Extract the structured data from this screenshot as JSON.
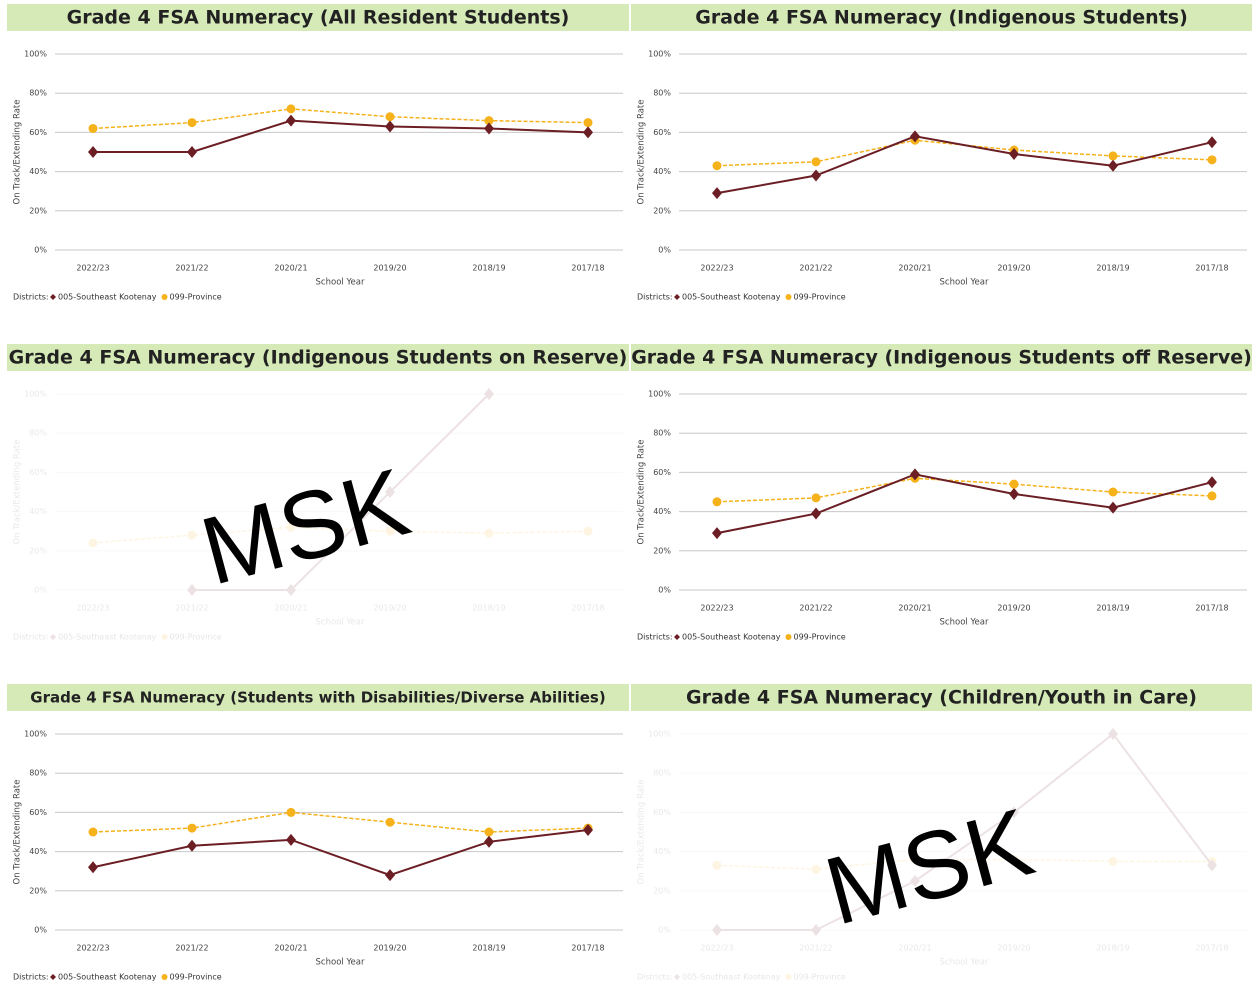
{
  "chart_data": [
    {
      "type": "line",
      "title": "Grade 4 FSA Numeracy (All Resident Students)",
      "y_label": "On Track/Extending Rate",
      "x_label": "School Year",
      "legend_title": "Districts:",
      "categories": [
        "2022/23",
        "2021/22",
        "2020/21",
        "2019/20",
        "2018/19",
        "2017/18"
      ],
      "series": [
        {
          "name": "005-Southeast Kootenay",
          "color": "#6b1e24",
          "values": [
            50,
            50,
            66,
            63,
            62,
            60
          ]
        },
        {
          "name": "099-Province",
          "color": "#f5b21b",
          "values": [
            62,
            65,
            72,
            68,
            66,
            65
          ]
        }
      ],
      "ylim": [
        0,
        100
      ],
      "yticks": [
        {
          "value": 0,
          "label": "0%"
        },
        {
          "value": 20,
          "label": "20%"
        },
        {
          "value": 40,
          "label": "40%"
        },
        {
          "value": 60,
          "label": "60%"
        },
        {
          "value": 80,
          "label": "80%"
        },
        {
          "value": 100,
          "label": "100%"
        }
      ],
      "grid": true
    },
    {
      "type": "line",
      "title": "Grade 4 FSA Numeracy (Indigenous Students)",
      "y_label": "On Track/Extending Rate",
      "x_label": "School Year",
      "legend_title": "Districts:",
      "categories": [
        "2022/23",
        "2021/22",
        "2020/21",
        "2019/20",
        "2018/19",
        "2017/18"
      ],
      "series": [
        {
          "name": "005-Southeast Kootenay",
          "color": "#6b1e24",
          "values": [
            29,
            38,
            58,
            49,
            43,
            55
          ]
        },
        {
          "name": "099-Province",
          "color": "#f5b21b",
          "values": [
            43,
            45,
            56,
            51,
            48,
            46
          ]
        }
      ],
      "ylim": [
        0,
        100
      ],
      "yticks": [
        {
          "value": 0,
          "label": "0%"
        },
        {
          "value": 20,
          "label": "20%"
        },
        {
          "value": 40,
          "label": "40%"
        },
        {
          "value": 60,
          "label": "60%"
        },
        {
          "value": 80,
          "label": "80%"
        },
        {
          "value": 100,
          "label": "100%"
        }
      ],
      "grid": true
    },
    {
      "type": "line",
      "title": "Grade 4 FSA Numeracy (Indigenous Students on Reserve)",
      "y_label": "On Track/Extending Rate",
      "x_label": "School Year",
      "legend_title": "Districts:",
      "masked": true,
      "overlay": "MSK",
      "categories": [
        "2022/23",
        "2021/22",
        "2020/21",
        "2019/20",
        "2018/19",
        "2017/18"
      ],
      "series": [
        {
          "name": "005-Southeast Kootenay",
          "color": "#6b1e24",
          "values": [
            null,
            0,
            0,
            50,
            100,
            null
          ]
        },
        {
          "name": "099-Province",
          "color": "#f5b21b",
          "values": [
            24,
            28,
            32,
            30,
            29,
            30
          ]
        }
      ],
      "ylim": [
        0,
        100
      ],
      "yticks": [
        {
          "value": 0,
          "label": "0%"
        },
        {
          "value": 20,
          "label": "20%"
        },
        {
          "value": 40,
          "label": "40%"
        },
        {
          "value": 60,
          "label": "60%"
        },
        {
          "value": 80,
          "label": "80%"
        },
        {
          "value": 100,
          "label": "100%"
        }
      ],
      "grid": true
    },
    {
      "type": "line",
      "title": "Grade 4 FSA Numeracy (Indigenous Students off Reserve)",
      "y_label": "On Track/Extending Rate",
      "x_label": "School Year",
      "legend_title": "Districts:",
      "categories": [
        "2022/23",
        "2021/22",
        "2020/21",
        "2019/20",
        "2018/19",
        "2017/18"
      ],
      "series": [
        {
          "name": "005-Southeast Kootenay",
          "color": "#6b1e24",
          "values": [
            29,
            39,
            59,
            49,
            42,
            55
          ]
        },
        {
          "name": "099-Province",
          "color": "#f5b21b",
          "values": [
            45,
            47,
            57,
            54,
            50,
            48
          ]
        }
      ],
      "ylim": [
        0,
        100
      ],
      "yticks": [
        {
          "value": 0,
          "label": "0%"
        },
        {
          "value": 20,
          "label": "20%"
        },
        {
          "value": 40,
          "label": "40%"
        },
        {
          "value": 60,
          "label": "60%"
        },
        {
          "value": 80,
          "label": "80%"
        },
        {
          "value": 100,
          "label": "100%"
        }
      ],
      "grid": true
    },
    {
      "type": "line",
      "title": "Grade 4 FSA Numeracy (Students with Disabilities/Diverse Abilities)",
      "y_label": "On Track/Extending Rate",
      "x_label": "School Year",
      "legend_title": "Districts:",
      "categories": [
        "2022/23",
        "2021/22",
        "2020/21",
        "2019/20",
        "2018/19",
        "2017/18"
      ],
      "series": [
        {
          "name": "005-Southeast Kootenay",
          "color": "#6b1e24",
          "values": [
            32,
            43,
            46,
            28,
            45,
            51
          ]
        },
        {
          "name": "099-Province",
          "color": "#f5b21b",
          "values": [
            50,
            52,
            60,
            55,
            50,
            52
          ]
        }
      ],
      "ylim": [
        0,
        100
      ],
      "yticks": [
        {
          "value": 0,
          "label": "0%"
        },
        {
          "value": 20,
          "label": "20%"
        },
        {
          "value": 40,
          "label": "40%"
        },
        {
          "value": 60,
          "label": "60%"
        },
        {
          "value": 80,
          "label": "80%"
        },
        {
          "value": 100,
          "label": "100%"
        }
      ],
      "grid": true
    },
    {
      "type": "line",
      "title": "Grade 4 FSA Numeracy (Children/Youth in Care)",
      "y_label": "On Track/Extending Rate",
      "x_label": "School Year",
      "legend_title": "Districts:",
      "masked": true,
      "overlay": "MSK",
      "categories": [
        "2022/23",
        "2021/22",
        "2020/21",
        "2019/20",
        "2018/19",
        "2017/18"
      ],
      "series": [
        {
          "name": "005-Southeast Kootenay",
          "color": "#6b1e24",
          "values": [
            0,
            0,
            25,
            60,
            100,
            33
          ]
        },
        {
          "name": "099-Province",
          "color": "#f5b21b",
          "values": [
            33,
            31,
            36,
            36,
            35,
            35
          ]
        }
      ],
      "ylim": [
        0,
        100
      ],
      "yticks": [
        {
          "value": 0,
          "label": "0%"
        },
        {
          "value": 20,
          "label": "20%"
        },
        {
          "value": 40,
          "label": "40%"
        },
        {
          "value": 60,
          "label": "60%"
        },
        {
          "value": 80,
          "label": "80%"
        },
        {
          "value": 100,
          "label": "100%"
        }
      ],
      "grid": true
    }
  ]
}
